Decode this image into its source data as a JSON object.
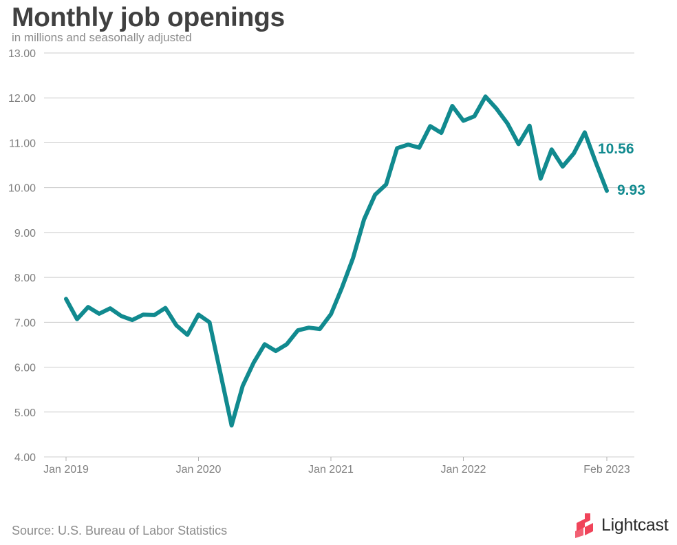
{
  "header": {
    "title": "Monthly job openings",
    "subtitle": "in millions and seasonally adjusted"
  },
  "footer": {
    "source": "Source: U.S. Bureau of Labor Statistics",
    "logo_text": "Lightcast"
  },
  "colors": {
    "line": "#118a8f",
    "grid": "#cccccc",
    "tick_text": "#808080",
    "logo_mark": "#f0445a"
  },
  "chart_data": {
    "type": "line",
    "title": "Monthly job openings",
    "subtitle": "in millions and seasonally adjusted",
    "ylim": [
      4.0,
      13.0
    ],
    "yticks": [
      "4.00",
      "5.00",
      "6.00",
      "7.00",
      "8.00",
      "9.00",
      "10.00",
      "11.00",
      "12.00",
      "13.00"
    ],
    "xticks": [
      {
        "label": "Jan 2019",
        "index": 0
      },
      {
        "label": "Jan 2020",
        "index": 12
      },
      {
        "label": "Jan 2021",
        "index": 24
      },
      {
        "label": "Jan 2022",
        "index": 36
      },
      {
        "label": "Feb 2023",
        "index": 49
      }
    ],
    "grid": true,
    "series": [
      {
        "x": [
          "Jan 2019",
          "Feb 2019",
          "Mar 2019",
          "Apr 2019",
          "May 2019",
          "Jun 2019",
          "Jul 2019",
          "Aug 2019",
          "Sep 2019",
          "Oct 2019",
          "Nov 2019",
          "Dec 2019",
          "Jan 2020",
          "Feb 2020",
          "Mar 2020",
          "Apr 2020",
          "May 2020",
          "Jun 2020",
          "Jul 2020",
          "Aug 2020",
          "Sep 2020",
          "Oct 2020",
          "Nov 2020",
          "Dec 2020",
          "Jan 2021",
          "Feb 2021",
          "Mar 2021",
          "Apr 2021",
          "May 2021",
          "Jun 2021",
          "Jul 2021",
          "Aug 2021",
          "Sep 2021",
          "Oct 2021",
          "Nov 2021",
          "Dec 2021",
          "Jan 2022",
          "Feb 2022",
          "Mar 2022",
          "Apr 2022",
          "May 2022",
          "Jun 2022",
          "Jul 2022",
          "Aug 2022",
          "Sep 2022",
          "Oct 2022",
          "Nov 2022",
          "Dec 2022",
          "Jan 2023",
          "Feb 2023"
        ],
        "values": [
          7.52,
          7.07,
          7.34,
          7.19,
          7.31,
          7.14,
          7.05,
          7.17,
          7.16,
          7.32,
          6.93,
          6.72,
          7.17,
          7.0,
          5.85,
          4.7,
          5.58,
          6.1,
          6.51,
          6.36,
          6.51,
          6.82,
          6.88,
          6.85,
          7.18,
          7.77,
          8.43,
          9.29,
          9.84,
          10.07,
          10.88,
          10.96,
          10.89,
          11.37,
          11.22,
          11.82,
          11.49,
          11.59,
          12.03,
          11.76,
          11.43,
          10.97,
          11.38,
          10.2,
          10.85,
          10.47,
          10.76,
          11.23,
          10.56,
          9.93
        ],
        "annotations": [
          {
            "index": 48,
            "label": "10.56"
          },
          {
            "index": 49,
            "label": "9.93"
          }
        ]
      }
    ]
  }
}
